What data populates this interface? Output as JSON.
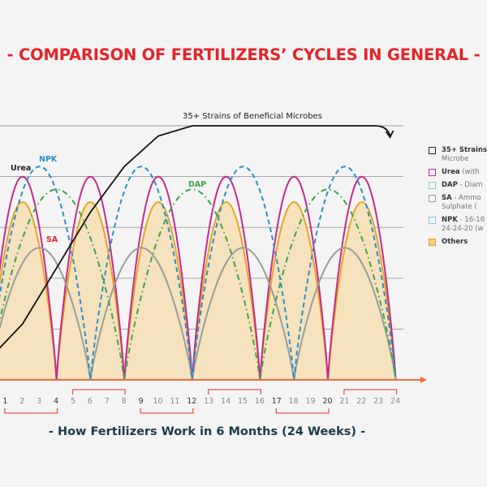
{
  "chart_data": {
    "type": "line",
    "title": "- COMPARISON OF FERTILIZERS’ CYCLES IN GENERAL -",
    "xlabel": "- How Fertilizers Work in 6 Months (24 Weeks) -",
    "ylabel": "",
    "x_ticks": [
      "1",
      "2",
      "3",
      "4",
      "5",
      "6",
      "7",
      "8",
      "9",
      "10",
      "11",
      "12",
      "13",
      "14",
      "15",
      "16",
      "17",
      "18",
      "19",
      "20",
      "21",
      "22",
      "23",
      "24"
    ],
    "xlim": [
      0,
      24
    ],
    "ylim": [
      0,
      5
    ],
    "grid": true,
    "series": [
      {
        "name": "Others",
        "color": "#e8a623",
        "fill": "#f6e2bd",
        "style": "solid",
        "cycle_weeks": 4,
        "peak": 3.5,
        "label": ""
      },
      {
        "name": "Urea",
        "color": "#c42a8c",
        "style": "solid",
        "cycle_weeks": 4,
        "peak": 4.0,
        "label": "Urea"
      },
      {
        "name": "SA",
        "color": "#9c9c9c",
        "style": "solid",
        "cycle_weeks": 6,
        "peak": 2.6,
        "label": "SA"
      },
      {
        "name": "NPK",
        "color": "#2b8fc9",
        "style": "dashed",
        "cycle_weeks": 6,
        "peak": 4.2,
        "label": "NPK"
      },
      {
        "name": "DAP",
        "color": "#3da54b",
        "style": "dashdot",
        "cycle_weeks": 8,
        "peak": 3.75,
        "label": "DAP"
      }
    ],
    "microbes": {
      "label": "35+ Strains of Beneficial Microbes",
      "color": "#111111",
      "points": [
        [
          0,
          0.4
        ],
        [
          2,
          1.1
        ],
        [
          4,
          2.2
        ],
        [
          6,
          3.3
        ],
        [
          8,
          4.2
        ],
        [
          10,
          4.8
        ],
        [
          12,
          5
        ],
        [
          22.8,
          5
        ]
      ]
    },
    "label_colors": {
      "Urea": "#222222",
      "NPK": "#2b8fc9",
      "SA": "#e5242a",
      "DAP": "#3da54b"
    },
    "axis_color": "#f26b3a",
    "bracket_color": "#e05a55",
    "legend": {
      "placement": "right",
      "items": [
        {
          "bold": "35+ Strains",
          "rest": "",
          "line2": "Microbe",
          "swatch": "#222222",
          "style": "solid"
        },
        {
          "bold": "Urea",
          "rest": " (with",
          "line2": "",
          "swatch": "#c42a8c",
          "style": "solid"
        },
        {
          "bold": "DAP",
          "rest": " - Diam",
          "line2": "",
          "swatch": "#3da54b",
          "style": "dotted"
        },
        {
          "bold": "SA",
          "rest": " - Ammo",
          "line2": "Sulphate (",
          "swatch": "#9c9c9c",
          "style": "solid"
        },
        {
          "bold": "NPK",
          "rest": " - 16-16",
          "line2": "24-24-20 (w",
          "swatch": "#2b8fc9",
          "style": "dotted"
        },
        {
          "bold": "Others",
          "rest": "",
          "line2": "",
          "swatch": "#e8a623",
          "style": "filled"
        }
      ]
    }
  }
}
